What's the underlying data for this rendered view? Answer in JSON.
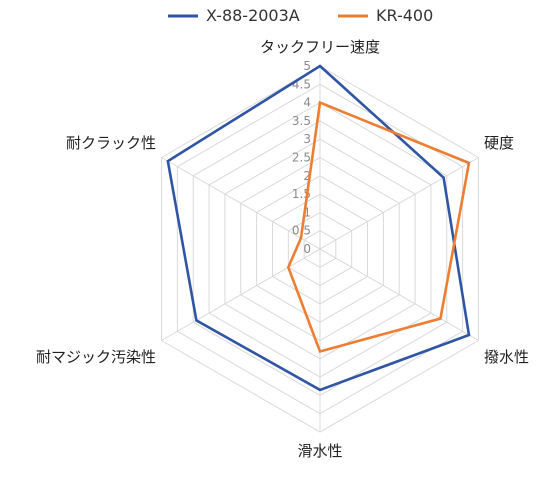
{
  "chart_data": {
    "type": "radar",
    "axes": [
      "タックフリー速度",
      "硬度",
      "撥水性",
      "滑水性",
      "耐マジック汚染性",
      "耐クラック性"
    ],
    "rlim": [
      0,
      5
    ],
    "ticks": [
      "0",
      "0.5",
      "1",
      "1.5",
      "2",
      "2.5",
      "3",
      "3.5",
      "4",
      "4.5",
      "5"
    ],
    "tick_values": [
      0,
      0.5,
      1,
      1.5,
      2,
      2.5,
      3,
      3.5,
      4,
      4.5,
      5
    ],
    "grid": true,
    "legend_position": "top",
    "series": [
      {
        "name": "X-88-2003A",
        "color": "#2f55a4",
        "values": [
          5,
          3.9,
          4.7,
          3.85,
          3.9,
          4.8
        ]
      },
      {
        "name": "KR-400",
        "color": "#ed7d31",
        "values": [
          4,
          4.7,
          3.8,
          2.8,
          1.0,
          0.6
        ]
      }
    ]
  }
}
